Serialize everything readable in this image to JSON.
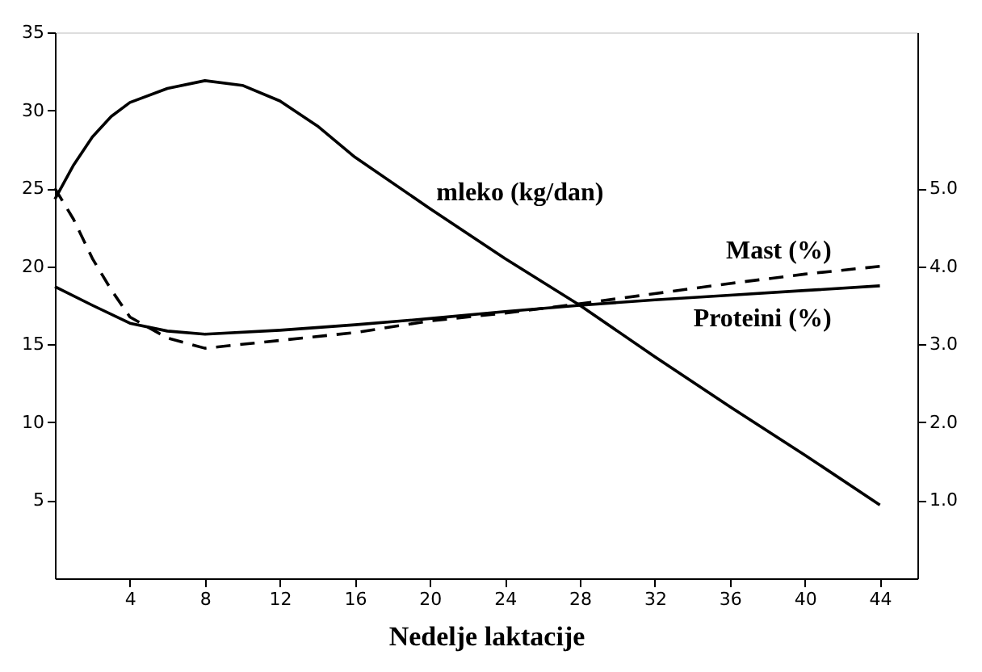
{
  "chart_data": {
    "type": "line",
    "xlabel": "Nedelje laktacije",
    "xlim": [
      0,
      46
    ],
    "xticks": [
      4,
      8,
      12,
      16,
      20,
      24,
      28,
      32,
      36,
      40,
      44
    ],
    "ylim": [
      0,
      35
    ],
    "yticks": [
      5,
      10,
      15,
      20,
      25,
      30,
      35
    ],
    "y2lim": [
      0,
      7
    ],
    "y2ticks": [
      {
        "value": 1,
        "label": "1.0"
      },
      {
        "value": 2,
        "label": "2.0"
      },
      {
        "value": 3,
        "label": "3.0"
      },
      {
        "value": 4,
        "label": "4.0"
      },
      {
        "value": 5,
        "label": "5.0"
      }
    ],
    "grid": false,
    "legend": false,
    "marker": "none",
    "series": [
      {
        "name": "mleko (kg/dan)",
        "color": "#000000",
        "line_style": "solid",
        "x": [
          0,
          1,
          2,
          3,
          4,
          6,
          8,
          10,
          12,
          14,
          16,
          20,
          24,
          28,
          32,
          36,
          40,
          44
        ],
        "values": [
          24.3,
          26.5,
          28.3,
          29.6,
          30.5,
          31.4,
          31.9,
          31.6,
          30.6,
          29.0,
          27.0,
          23.7,
          20.5,
          17.5,
          14.2,
          11.0,
          7.9,
          4.7
        ]
      },
      {
        "name": "Mast (%)",
        "color": "#000000",
        "line_style": "dashed",
        "axis": "y2",
        "x": [
          0,
          1,
          2,
          3,
          4,
          6,
          8,
          12,
          16,
          20,
          24,
          28,
          32,
          36,
          40,
          44
        ],
        "values": [
          5.0,
          4.6,
          4.1,
          3.7,
          3.35,
          3.08,
          2.95,
          3.05,
          3.15,
          3.3,
          3.4,
          3.52,
          3.65,
          3.78,
          3.9,
          4.0
        ]
      },
      {
        "name": "Proteini (%)",
        "color": "#000000",
        "line_style": "solid",
        "axis": "y2",
        "x": [
          0,
          2,
          4,
          6,
          8,
          12,
          16,
          20,
          24,
          28,
          32,
          36,
          40,
          44
        ],
        "values": [
          3.74,
          3.5,
          3.27,
          3.17,
          3.13,
          3.18,
          3.25,
          3.33,
          3.42,
          3.5,
          3.57,
          3.63,
          3.69,
          3.75
        ]
      }
    ]
  }
}
